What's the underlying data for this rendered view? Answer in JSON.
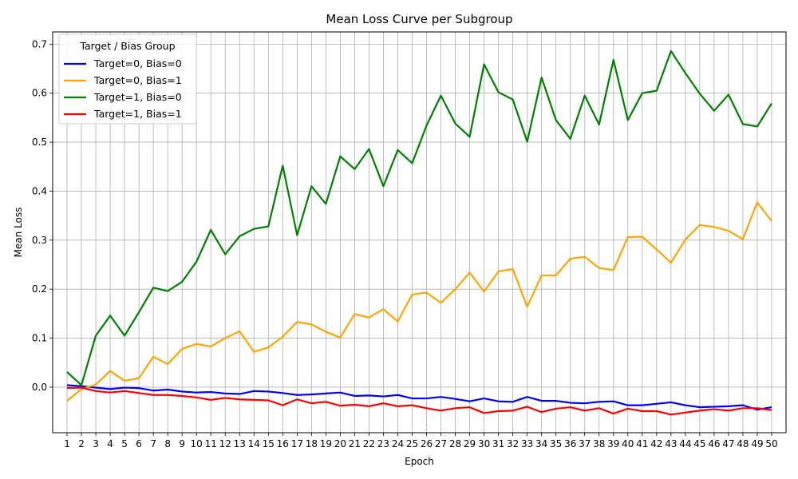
{
  "chart_data": {
    "type": "line",
    "title": "Mean Loss Curve per Subgroup",
    "xlabel": "Epoch",
    "ylabel": "Mean Loss",
    "x": [
      1,
      2,
      3,
      4,
      5,
      6,
      7,
      8,
      9,
      10,
      11,
      12,
      13,
      14,
      15,
      16,
      17,
      18,
      19,
      20,
      21,
      22,
      23,
      24,
      25,
      26,
      27,
      28,
      29,
      30,
      31,
      32,
      33,
      34,
      35,
      36,
      37,
      38,
      39,
      40,
      41,
      42,
      43,
      44,
      45,
      46,
      47,
      48,
      49,
      50
    ],
    "xlim": [
      0,
      51
    ],
    "ylim": [
      -0.093,
      0.725
    ],
    "yticks": [
      0.0,
      0.1,
      0.2,
      0.3,
      0.4,
      0.5,
      0.6,
      0.7
    ],
    "ytick_labels": [
      "0.0",
      "0.1",
      "0.2",
      "0.3",
      "0.4",
      "0.5",
      "0.6",
      "0.7"
    ],
    "grid": true,
    "legend": {
      "title": "Target / Bias Group",
      "placement": "top-left"
    },
    "series": [
      {
        "name": "Target=0, Bias=0",
        "color": "#0000ff",
        "values": [
          0.004,
          0.002,
          -0.001,
          -0.004,
          -0.001,
          -0.002,
          -0.007,
          -0.005,
          -0.009,
          -0.011,
          -0.01,
          -0.013,
          -0.014,
          -0.008,
          -0.009,
          -0.012,
          -0.016,
          -0.015,
          -0.013,
          -0.011,
          -0.018,
          -0.017,
          -0.019,
          -0.016,
          -0.023,
          -0.023,
          -0.02,
          -0.024,
          -0.029,
          -0.023,
          -0.029,
          -0.03,
          -0.02,
          -0.028,
          -0.028,
          -0.032,
          -0.033,
          -0.03,
          -0.029,
          -0.037,
          -0.037,
          -0.034,
          -0.031,
          -0.037,
          -0.041,
          -0.04,
          -0.039,
          -0.037,
          -0.046,
          -0.041
        ]
      },
      {
        "name": "Target=0, Bias=1",
        "color": "#ffa500",
        "values": [
          -0.028,
          -0.004,
          0.005,
          0.033,
          0.013,
          0.018,
          0.062,
          0.047,
          0.078,
          0.088,
          0.083,
          0.1,
          0.114,
          0.072,
          0.081,
          0.103,
          0.133,
          0.128,
          0.113,
          0.101,
          0.149,
          0.142,
          0.159,
          0.134,
          0.189,
          0.193,
          0.172,
          0.2,
          0.234,
          0.195,
          0.236,
          0.241,
          0.164,
          0.228,
          0.228,
          0.262,
          0.266,
          0.243,
          0.239,
          0.306,
          0.307,
          0.281,
          0.254,
          0.301,
          0.331,
          0.327,
          0.319,
          0.302,
          0.377,
          0.339
        ]
      },
      {
        "name": "Target=1, Bias=0",
        "color": "#008000",
        "values": [
          0.031,
          0.004,
          0.105,
          0.146,
          0.105,
          0.153,
          0.203,
          0.196,
          0.215,
          0.256,
          0.321,
          0.271,
          0.308,
          0.323,
          0.328,
          0.452,
          0.31,
          0.41,
          0.374,
          0.471,
          0.445,
          0.486,
          0.41,
          0.484,
          0.457,
          0.534,
          0.595,
          0.538,
          0.511,
          0.659,
          0.602,
          0.587,
          0.501,
          0.632,
          0.545,
          0.507,
          0.595,
          0.536,
          0.668,
          0.545,
          0.6,
          0.605,
          0.686,
          0.641,
          0.599,
          0.564,
          0.597,
          0.537,
          0.532,
          0.579
        ]
      },
      {
        "name": "Target=1, Bias=1",
        "color": "#ff0000",
        "values": [
          -0.002,
          -0.001,
          -0.008,
          -0.011,
          -0.008,
          -0.012,
          -0.016,
          -0.016,
          -0.018,
          -0.021,
          -0.026,
          -0.022,
          -0.025,
          -0.026,
          -0.027,
          -0.037,
          -0.025,
          -0.033,
          -0.03,
          -0.038,
          -0.036,
          -0.039,
          -0.033,
          -0.039,
          -0.037,
          -0.043,
          -0.048,
          -0.043,
          -0.041,
          -0.053,
          -0.049,
          -0.048,
          -0.04,
          -0.051,
          -0.044,
          -0.041,
          -0.048,
          -0.043,
          -0.054,
          -0.044,
          -0.049,
          -0.049,
          -0.056,
          -0.052,
          -0.048,
          -0.045,
          -0.048,
          -0.043,
          -0.043,
          -0.047
        ]
      }
    ]
  }
}
